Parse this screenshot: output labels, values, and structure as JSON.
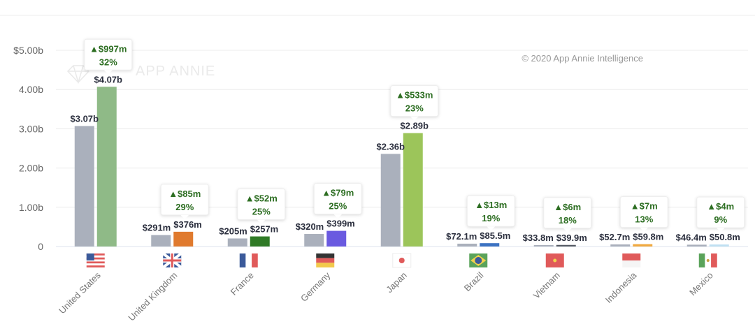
{
  "copyright": "© 2020 App Annie Intelligence",
  "watermark": "APP ANNIE",
  "chart_data": {
    "type": "bar",
    "title": "",
    "xlabel": "",
    "ylabel": "",
    "ylim": [
      0,
      5.0
    ],
    "y_ticks": [
      "0",
      "1.00b",
      "2.00b",
      "3.00b",
      "4.00b",
      "$5.00b"
    ],
    "y_tick_values": [
      0,
      1,
      2,
      3,
      4,
      5
    ],
    "grid": true,
    "categories": [
      "United States",
      "United Kingdom",
      "France",
      "Germany",
      "Japan",
      "Brazil",
      "Vietnam",
      "Indonesia",
      "Mexico"
    ],
    "series": [
      {
        "values_billion": [
          3.07,
          0.291,
          0.205,
          0.32,
          2.36,
          0.0721,
          0.0338,
          0.0527,
          0.0464
        ],
        "labels": [
          "$3.07b",
          "$291m",
          "$205m",
          "$320m",
          "$2.36b",
          "$72.1m",
          "$33.8m",
          "$52.7m",
          "$46.4m"
        ],
        "color": "#aab0bc"
      },
      {
        "values_billion": [
          4.07,
          0.376,
          0.257,
          0.399,
          2.89,
          0.0855,
          0.0399,
          0.0598,
          0.0508
        ],
        "labels": [
          "$4.07b",
          "$376m",
          "$257m",
          "$399m",
          "$2.89b",
          "$85.5m",
          "$39.9m",
          "$59.8m",
          "$50.8m"
        ],
        "colors": [
          "#8fba87",
          "#e07a2e",
          "#2f7a26",
          "#6a5ae0",
          "#9cc55a",
          "#3c72c2",
          "#555a63",
          "#f0a940",
          "#bfe0f2"
        ]
      }
    ],
    "annotations": [
      {
        "change": "▲$997m",
        "pct": "32%"
      },
      {
        "change": "▲$85m",
        "pct": "29%"
      },
      {
        "change": "▲$52m",
        "pct": "25%"
      },
      {
        "change": "▲$79m",
        "pct": "25%"
      },
      {
        "change": "▲$533m",
        "pct": "23%"
      },
      {
        "change": "▲$13m",
        "pct": "19%"
      },
      {
        "change": "▲$6m",
        "pct": "18%"
      },
      {
        "change": "▲$7m",
        "pct": "13%"
      },
      {
        "change": "▲$4m",
        "pct": "9%"
      }
    ],
    "flags": [
      "us-flag",
      "uk-flag",
      "france-flag",
      "germany-flag",
      "japan-flag",
      "brazil-flag",
      "vietnam-flag",
      "indonesia-flag",
      "mexico-flag"
    ]
  }
}
